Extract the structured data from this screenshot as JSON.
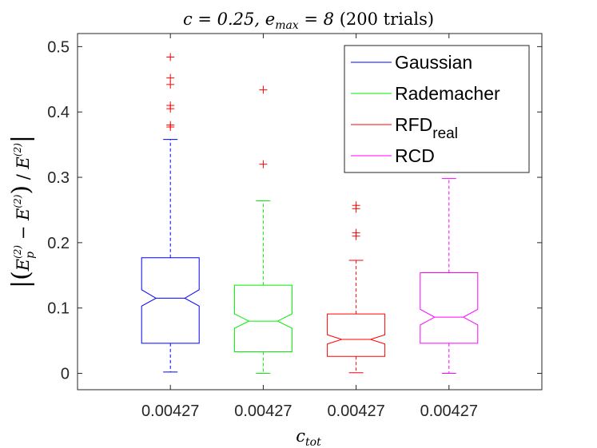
{
  "chart_data": {
    "type": "box",
    "title": "c = 0.25, e_max = 8 (200 trials)",
    "xlabel": "c_tot",
    "ylabel": "|(E_p^(2) − E^(2))/E^(2)|",
    "ylim": [
      -0.025,
      0.52
    ],
    "yticks": [
      0,
      0.1,
      0.2,
      0.3,
      0.4,
      0.5
    ],
    "ytick_labels": [
      "0",
      "0.1",
      "0.2",
      "0.3",
      "0.4",
      "0.5"
    ],
    "categories": [
      "0.00427",
      "0.00427",
      "0.00427",
      "0.00427"
    ],
    "series": [
      {
        "name": "Gaussian",
        "color": "#0000ff",
        "min": 0.002,
        "q1": 0.046,
        "median": 0.115,
        "q3": 0.177,
        "max": 0.358,
        "notch_low": 0.103,
        "notch_high": 0.128,
        "outliers": [
          0.377,
          0.38,
          0.405,
          0.41,
          0.442,
          0.452,
          0.484
        ]
      },
      {
        "name": "Rademacher",
        "color": "#00ee00",
        "min": 0.0,
        "q1": 0.033,
        "median": 0.08,
        "q3": 0.135,
        "max": 0.264,
        "notch_low": 0.069,
        "notch_high": 0.091,
        "outliers": [
          0.32,
          0.434
        ]
      },
      {
        "name": "RFD_real",
        "color": "#ff0000",
        "min": 0.001,
        "q1": 0.026,
        "median": 0.052,
        "q3": 0.091,
        "max": 0.173,
        "notch_low": 0.045,
        "notch_high": 0.059,
        "outliers": [
          0.21,
          0.215,
          0.252,
          0.257
        ]
      },
      {
        "name": "RCD",
        "color": "#ff00ff",
        "min": 0.0,
        "q1": 0.046,
        "median": 0.086,
        "q3": 0.154,
        "max": 0.298,
        "notch_low": 0.074,
        "notch_high": 0.098,
        "outliers": []
      }
    ],
    "legend": {
      "position": "top-right",
      "entries": [
        {
          "label": "Gaussian",
          "color": "#0000ff"
        },
        {
          "label": "Rademacher",
          "color": "#00ee00"
        },
        {
          "label": "RFD",
          "subscript": "real",
          "color": "#ff0000"
        },
        {
          "label": "RCD",
          "color": "#ff00ff"
        }
      ]
    }
  }
}
